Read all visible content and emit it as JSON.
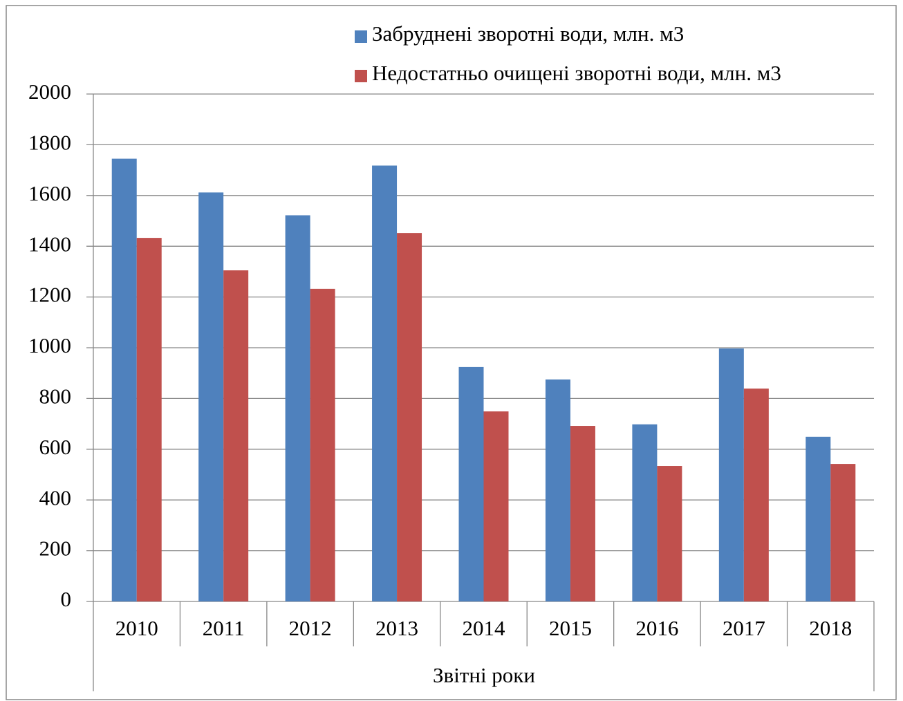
{
  "chart_data": {
    "type": "bar",
    "categories": [
      "2010",
      "2011",
      "2012",
      "2013",
      "2014",
      "2015",
      "2016",
      "2017",
      "2018"
    ],
    "series": [
      {
        "name": "Забруднені зворотні води, млн. м3",
        "color": "#4f81bd",
        "values": [
          1745,
          1612,
          1522,
          1718,
          924,
          875,
          698,
          997,
          649
        ]
      },
      {
        "name": "Недостатньо очищені зворотні води, млн. м3",
        "color": "#c0504d",
        "values": [
          1433,
          1305,
          1232,
          1452,
          749,
          692,
          534,
          839,
          542
        ]
      }
    ],
    "xlabel": "Звітні роки",
    "ylim": [
      0,
      2000
    ],
    "yticks": [
      0,
      200,
      400,
      600,
      800,
      1000,
      1200,
      1400,
      1600,
      1800,
      2000
    ],
    "grid": true,
    "legend": "top"
  }
}
